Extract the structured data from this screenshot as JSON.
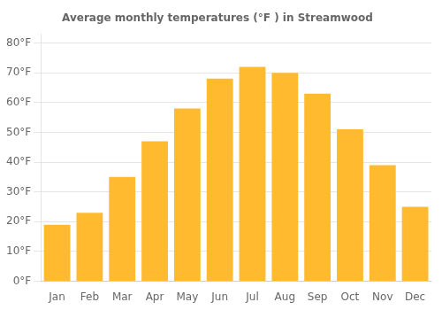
{
  "chart_data": {
    "type": "bar",
    "title": "Average monthly temperatures (°F ) in Streamwood",
    "categories": [
      "Jan",
      "Feb",
      "Mar",
      "Apr",
      "May",
      "Jun",
      "Jul",
      "Aug",
      "Sep",
      "Oct",
      "Nov",
      "Dec"
    ],
    "values": [
      19,
      23,
      35,
      47,
      58,
      68,
      72,
      70,
      63,
      51,
      39,
      25
    ],
    "color": "#FFBA30",
    "ylim": [
      0,
      83
    ],
    "yticks": [
      {
        "value": 0,
        "label": "0°F"
      },
      {
        "value": 10,
        "label": "10°F"
      },
      {
        "value": 20,
        "label": "20°F"
      },
      {
        "value": 30,
        "label": "30°F"
      },
      {
        "value": 40,
        "label": "40°F"
      },
      {
        "value": 50,
        "label": "50°F"
      },
      {
        "value": 60,
        "label": "60°F"
      },
      {
        "value": 70,
        "label": "70°F"
      },
      {
        "value": 80,
        "label": "80°F"
      }
    ],
    "grid": true
  }
}
